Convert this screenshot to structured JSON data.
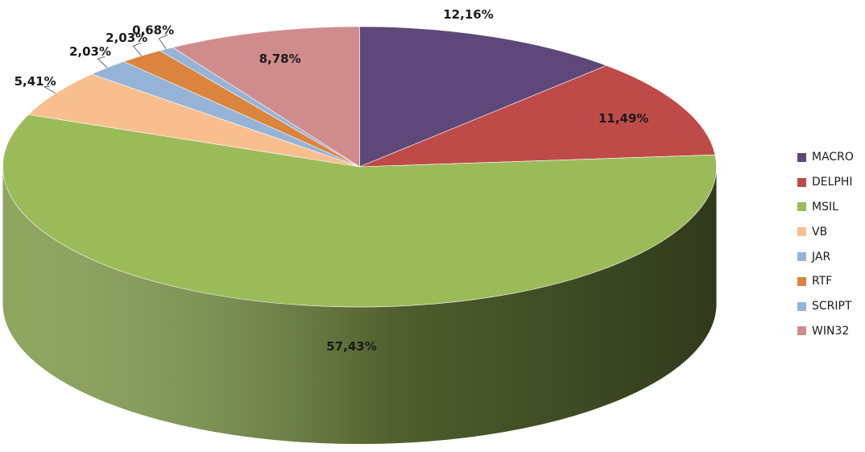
{
  "chart_data": {
    "type": "pie",
    "title": "",
    "style": "3d",
    "start_angle": "12 o'clock, clockwise",
    "legend_position": "right",
    "slices": [
      {
        "name": "MACRO",
        "value": 12.16,
        "label": "12,16%",
        "color": "#5E4879"
      },
      {
        "name": "DELPHI",
        "value": 11.49,
        "label": "11,49%",
        "color": "#BE4B48"
      },
      {
        "name": "MSIL",
        "value": 57.43,
        "label": "57,43%",
        "color": "#9BBB59"
      },
      {
        "name": "VB",
        "value": 5.41,
        "label": "5,41%",
        "color": "#F9BE8E"
      },
      {
        "name": "JAR",
        "value": 2.03,
        "label": "2,03%",
        "color": "#95B3D7"
      },
      {
        "name": "RTF",
        "value": 2.03,
        "label": "2,03%",
        "color": "#DB843D"
      },
      {
        "name": "SCRIPT",
        "value": 0.68,
        "label": "0,68%",
        "color": "#95B3D7"
      },
      {
        "name": "WIN32",
        "value": 8.78,
        "label": "8,78%",
        "color": "#D08C8C"
      }
    ]
  }
}
